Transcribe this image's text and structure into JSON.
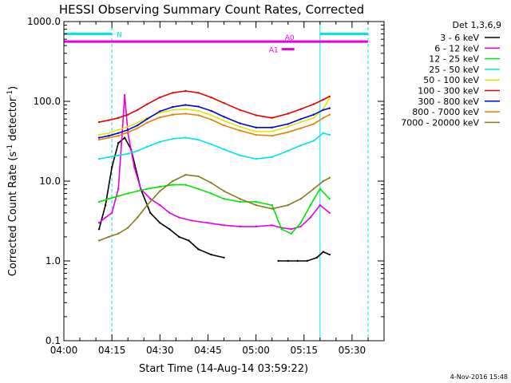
{
  "chart_data": {
    "type": "line",
    "title": "HESSI Observing Summary Count Rates, Corrected",
    "xlabel": "Start Time (14-Aug-14 03:59:22)",
    "ylabel": "Corrected Count Rate (s⁻¹ detector⁻¹)",
    "ylabel_main": "Corrected Count Rate (s",
    "ylabel_mid": " detector",
    "ylabel_end": ")",
    "ylabel_exp": "-1",
    "yscale": "log",
    "xlim": [
      "04:00",
      "05:40"
    ],
    "ylim": [
      0.1,
      1000
    ],
    "x_ticks": [
      "04:00",
      "04:15",
      "04:30",
      "04:45",
      "05:00",
      "05:15",
      "05:30"
    ],
    "y_ticks": [
      "0.1",
      "1.0",
      "10.0",
      "100.0",
      "1000.0"
    ],
    "grid": false,
    "legend_position": "right",
    "legend_title": "Det 1,3,6,9",
    "timestamp": "4-Nov-2016 15:48",
    "vertical_markers": [
      {
        "time": "04:00",
        "style": "solid",
        "color": "#00e5e5"
      },
      {
        "time": "04:15",
        "style": "dashed",
        "color": "#00e5e5"
      },
      {
        "time": "05:20",
        "style": "solid",
        "color": "#00e5e5"
      },
      {
        "time": "05:35",
        "style": "dashed",
        "color": "#00e5e5"
      }
    ],
    "bars": [
      {
        "label": "N",
        "start": "04:00",
        "end": "04:15",
        "value": 700,
        "color": "#00e5e5"
      },
      {
        "label": "",
        "start": "05:20",
        "end": "05:35",
        "value": 700,
        "color": "#00e5e5"
      },
      {
        "label": "A0",
        "start": "04:00",
        "end": "05:35",
        "value": 560,
        "color": "#e600e6"
      },
      {
        "label": "A1",
        "start": "05:08",
        "end": "05:12",
        "value": 450,
        "color": "#e600e6"
      }
    ],
    "series": [
      {
        "name": "3 - 6 keV",
        "color": "#000000",
        "x": [
          "04:11",
          "04:13",
          "04:15",
          "04:17",
          "04:19",
          "04:21",
          "04:24",
          "04:27",
          "04:30",
          "04:33",
          "04:36",
          "04:39",
          "04:42",
          "04:46",
          "04:50",
          "05:04",
          "05:07",
          "05:10",
          "05:13",
          "05:16",
          "05:19",
          "05:21",
          "05:23"
        ],
        "y": [
          2.5,
          5,
          15,
          30,
          35,
          25,
          8,
          4,
          3,
          2.5,
          2,
          1.8,
          1.4,
          1.2,
          1.1,
          null,
          1.0,
          1.0,
          1.0,
          1.0,
          1.1,
          1.3,
          1.2
        ]
      },
      {
        "name": "6 - 12 keV",
        "color": "#e600e6",
        "x": [
          "04:11",
          "04:13",
          "04:15",
          "04:17",
          "04:18",
          "04:19",
          "04:20",
          "04:22",
          "04:24",
          "04:27",
          "04:30",
          "04:33",
          "04:36",
          "04:40",
          "04:45",
          "04:50",
          "04:55",
          "05:00",
          "05:05",
          "05:08",
          "05:11",
          "05:14",
          "05:17",
          "05:20",
          "05:23"
        ],
        "y": [
          3,
          3.5,
          4,
          8,
          30,
          120,
          40,
          15,
          8,
          6,
          5,
          4,
          3.5,
          3.2,
          3,
          2.8,
          2.7,
          2.7,
          2.8,
          2.6,
          2.5,
          2.7,
          3.5,
          5,
          4
        ]
      },
      {
        "name": "12 - 25 keV",
        "color": "#00e600",
        "x": [
          "04:11",
          "04:14",
          "04:17",
          "04:20",
          "04:23",
          "04:26",
          "04:30",
          "04:34",
          "04:38",
          "04:42",
          "04:46",
          "04:50",
          "04:55",
          "05:00",
          "05:05",
          "05:08",
          "05:11",
          "05:14",
          "05:17",
          "05:20",
          "05:23"
        ],
        "y": [
          5.5,
          6,
          6.5,
          7,
          7.5,
          8,
          8.5,
          9,
          9,
          8,
          7,
          6,
          5.5,
          5.5,
          5,
          2.5,
          2.2,
          3,
          5,
          8,
          6
        ]
      },
      {
        "name": "25 - 50 keV",
        "color": "#00e5e5",
        "x": [
          "04:11",
          "04:14",
          "04:17",
          "04:20",
          "04:23",
          "04:26",
          "04:30",
          "04:34",
          "04:38",
          "04:42",
          "04:46",
          "04:50",
          "04:55",
          "05:00",
          "05:05",
          "05:10",
          "05:14",
          "05:18",
          "05:21",
          "05:23"
        ],
        "y": [
          19,
          20,
          21,
          22,
          24,
          27,
          31,
          34,
          35,
          33,
          29,
          25,
          21,
          19,
          20,
          24,
          28,
          32,
          40,
          38
        ]
      },
      {
        "name": "50 - 100 keV",
        "color": "#e6e600",
        "x": [
          "04:11",
          "04:14",
          "04:17",
          "04:20",
          "04:23",
          "04:26",
          "04:30",
          "04:34",
          "04:38",
          "04:42",
          "04:46",
          "04:50",
          "04:55",
          "05:00",
          "05:05",
          "05:10",
          "05:14",
          "05:18",
          "05:21",
          "05:23"
        ],
        "y": [
          38,
          40,
          44,
          48,
          54,
          62,
          72,
          78,
          80,
          76,
          67,
          57,
          48,
          42,
          42,
          48,
          55,
          62,
          80,
          110
        ]
      },
      {
        "name": "100 - 300 keV",
        "color": "#e60000",
        "x": [
          "04:11",
          "04:14",
          "04:17",
          "04:20",
          "04:23",
          "04:26",
          "04:30",
          "04:34",
          "04:38",
          "04:42",
          "04:46",
          "04:50",
          "04:55",
          "05:00",
          "05:05",
          "05:10",
          "05:14",
          "05:18",
          "05:21",
          "05:23"
        ],
        "y": [
          55,
          58,
          62,
          68,
          78,
          92,
          112,
          128,
          135,
          128,
          112,
          95,
          78,
          67,
          62,
          70,
          80,
          92,
          105,
          115
        ]
      },
      {
        "name": "300 - 800 keV",
        "color": "#0000e6",
        "x": [
          "04:11",
          "04:14",
          "04:17",
          "04:20",
          "04:23",
          "04:26",
          "04:30",
          "04:34",
          "04:38",
          "04:42",
          "04:46",
          "04:50",
          "04:55",
          "05:00",
          "05:05",
          "05:10",
          "05:14",
          "05:18",
          "05:21",
          "05:23"
        ],
        "y": [
          35,
          37,
          40,
          44,
          50,
          60,
          75,
          85,
          90,
          86,
          76,
          64,
          53,
          47,
          47,
          52,
          60,
          68,
          78,
          82
        ]
      },
      {
        "name": "800 - 7000 keV",
        "color": "#e68000",
        "x": [
          "04:11",
          "04:14",
          "04:17",
          "04:20",
          "04:23",
          "04:26",
          "04:30",
          "04:34",
          "04:38",
          "04:42",
          "04:46",
          "04:50",
          "04:55",
          "05:00",
          "05:05",
          "05:10",
          "05:14",
          "05:18",
          "05:21",
          "05:23"
        ],
        "y": [
          33,
          35,
          37,
          41,
          46,
          54,
          63,
          68,
          70,
          67,
          59,
          50,
          43,
          38,
          37,
          41,
          46,
          52,
          62,
          68
        ]
      },
      {
        "name": "7000 - 20000 keV",
        "color": "#8b7a1a",
        "x": [
          "04:11",
          "04:14",
          "04:17",
          "04:20",
          "04:23",
          "04:26",
          "04:30",
          "04:34",
          "04:38",
          "04:42",
          "04:46",
          "04:50",
          "04:55",
          "05:00",
          "05:05",
          "05:10",
          "05:14",
          "05:18",
          "05:21",
          "05:23"
        ],
        "y": [
          1.8,
          2.0,
          2.2,
          2.6,
          3.5,
          5,
          7.5,
          10,
          12,
          11.5,
          9.5,
          7.5,
          6,
          5,
          4.5,
          5,
          6,
          8,
          10,
          11
        ]
      }
    ]
  }
}
